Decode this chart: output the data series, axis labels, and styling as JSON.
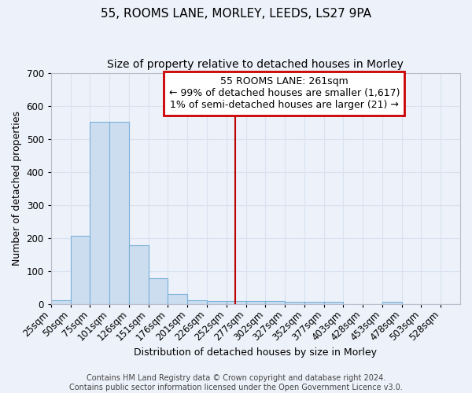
{
  "title": "55, ROOMS LANE, MORLEY, LEEDS, LS27 9PA",
  "subtitle": "Size of property relative to detached houses in Morley",
  "xlabel": "Distribution of detached houses by size in Morley",
  "ylabel": "Number of detached properties",
  "bar_labels": [
    "25sqm",
    "50sqm",
    "75sqm",
    "101sqm",
    "126sqm",
    "151sqm",
    "176sqm",
    "201sqm",
    "226sqm",
    "252sqm",
    "277sqm",
    "302sqm",
    "327sqm",
    "352sqm",
    "377sqm",
    "403sqm",
    "428sqm",
    "453sqm",
    "478sqm",
    "503sqm",
    "528sqm"
  ],
  "bar_values": [
    11,
    207,
    553,
    553,
    178,
    78,
    29,
    12,
    8,
    8,
    8,
    8,
    6,
    6,
    6,
    0,
    0,
    7,
    0,
    0,
    0
  ],
  "bar_color": "#ccddf0",
  "bar_edgecolor": "#7ab0d8",
  "property_size": 261,
  "vline_color": "#bb0000",
  "annotation_line1": "55 ROOMS LANE: 261sqm",
  "annotation_line2": "← 99% of detached houses are smaller (1,617)",
  "annotation_line3": "1% of semi-detached houses are larger (21) →",
  "annotation_box_facecolor": "#ffffff",
  "annotation_box_edgecolor": "#cc0000",
  "ylim_max": 700,
  "yticks": [
    0,
    100,
    200,
    300,
    400,
    500,
    600,
    700
  ],
  "footer_line1": "Contains HM Land Registry data © Crown copyright and database right 2024.",
  "footer_line2": "Contains public sector information licensed under the Open Government Licence v3.0.",
  "background_color": "#edf1f9",
  "grid_color": "#d8e2f0",
  "title_fontsize": 11,
  "subtitle_fontsize": 10,
  "axis_label_fontsize": 9,
  "tick_fontsize": 8.5,
  "annotation_fontsize": 9,
  "footer_fontsize": 7
}
